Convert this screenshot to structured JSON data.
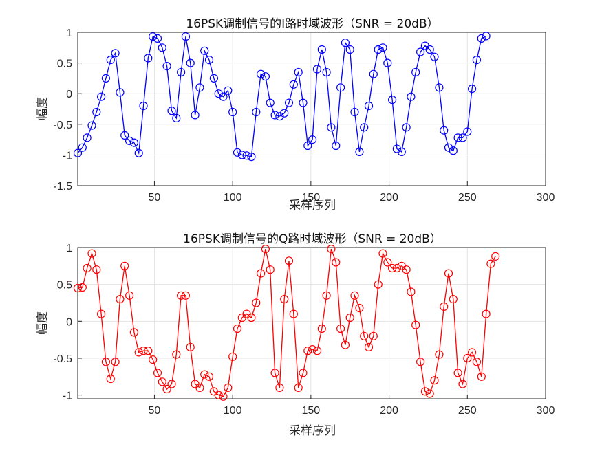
{
  "chart_data": [
    {
      "type": "line",
      "title": "16PSK调制信号的I路时域波形（SNR = 20dB）",
      "xlabel": "采样序列",
      "ylabel": "幅度",
      "xlim": [
        1,
        300
      ],
      "ylim": [
        -1.5,
        1
      ],
      "xticks": [
        50,
        100,
        150,
        200,
        250,
        300
      ],
      "yticks": [
        -1.5,
        -1,
        -0.5,
        0,
        0.5,
        1
      ],
      "grid": true,
      "marker": "circle",
      "series": [
        {
          "name": "I",
          "color": "#0000ff",
          "x_start": 1,
          "x_step": 3,
          "values": [
            -0.97,
            -0.88,
            -0.72,
            -0.52,
            -0.3,
            -0.05,
            0.25,
            0.55,
            0.66,
            0.02,
            -0.68,
            -0.77,
            -0.8,
            -0.97,
            -0.2,
            0.58,
            0.93,
            0.9,
            0.75,
            0.45,
            -0.28,
            -0.4,
            0.35,
            0.93,
            0.5,
            -0.35,
            0.1,
            0.7,
            0.55,
            0.25,
            0.0,
            -0.05,
            0.05,
            -0.3,
            -0.96,
            -1.0,
            -1.01,
            -1.03,
            -0.3,
            0.32,
            0.28,
            -0.15,
            -0.35,
            -0.37,
            -0.32,
            -0.15,
            0.15,
            0.35,
            -0.15,
            -0.85,
            -0.75,
            0.4,
            0.72,
            0.35,
            -0.55,
            -0.85,
            0.1,
            0.83,
            0.72,
            -0.3,
            -0.95,
            -0.55,
            -0.2,
            0.32,
            0.72,
            0.75,
            0.5,
            -0.1,
            -0.9,
            -0.95,
            -0.55,
            -0.05,
            0.35,
            0.68,
            0.78,
            0.72,
            0.6,
            0.1,
            -0.6,
            -0.88,
            -0.93,
            -0.72,
            -0.72,
            -0.62,
            0.08,
            0.55,
            0.9,
            0.94
          ]
        }
      ]
    },
    {
      "type": "line",
      "title": "16PSK调制信号的Q路时域波形（SNR = 20dB）",
      "xlabel": "采样序列",
      "ylabel": "幅度",
      "xlim": [
        1,
        300
      ],
      "ylim": [
        -1.05,
        1
      ],
      "xticks": [
        50,
        100,
        150,
        200,
        250,
        300
      ],
      "yticks": [
        -1,
        -0.5,
        0,
        0.5,
        1
      ],
      "grid": true,
      "marker": "circle",
      "series": [
        {
          "name": "Q",
          "color": "#ff0000",
          "x_start": 1,
          "x_step": 3,
          "values": [
            0.45,
            0.46,
            0.72,
            0.92,
            0.7,
            0.1,
            -0.55,
            -0.78,
            -0.55,
            0.3,
            0.75,
            0.35,
            -0.15,
            -0.42,
            -0.4,
            -0.4,
            -0.52,
            -0.7,
            -0.82,
            -0.92,
            -0.85,
            -0.45,
            0.35,
            0.35,
            -0.35,
            -0.85,
            -0.9,
            -0.72,
            -0.75,
            -0.95,
            -1.0,
            -1.02,
            -0.9,
            -0.48,
            -0.1,
            0.05,
            0.1,
            0.05,
            0.25,
            0.65,
            0.98,
            0.7,
            -0.7,
            -0.9,
            0.3,
            0.82,
            0.1,
            -0.9,
            -0.7,
            -0.4,
            -0.38,
            -0.4,
            -0.1,
            0.35,
            0.98,
            0.8,
            -0.1,
            -0.32,
            0.05,
            0.35,
            0.18,
            -0.2,
            -0.35,
            -0.2,
            0.5,
            0.92,
            0.8,
            0.72,
            0.72,
            0.75,
            0.7,
            0.4,
            -0.05,
            -0.55,
            -0.95,
            -0.98,
            -0.8,
            -0.45,
            0.2,
            0.65,
            0.3,
            -0.7,
            -0.85,
            -0.5,
            -0.42,
            -0.55,
            -0.75,
            0.1,
            0.78,
            0.88
          ]
        }
      ]
    }
  ]
}
